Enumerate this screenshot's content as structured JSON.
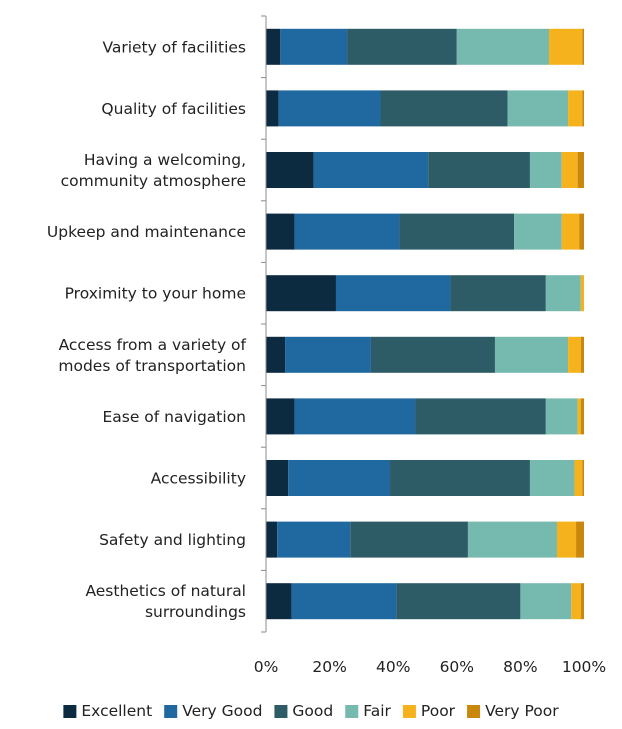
{
  "chart_data": {
    "type": "bar",
    "orientation": "horizontal",
    "stacked": "percent",
    "categories": [
      [
        "Variety of facilities"
      ],
      [
        "Quality of facilities"
      ],
      [
        "Having a welcoming,",
        "community atmosphere"
      ],
      [
        "Upkeep and maintenance"
      ],
      [
        "Proximity to your home"
      ],
      [
        "Access from a variety of",
        "modes of transportation"
      ],
      [
        "Ease of navigation"
      ],
      [
        "Accessibility"
      ],
      [
        "Safety and lighting"
      ],
      [
        "Aesthetics of natural",
        "surroundings"
      ]
    ],
    "series": [
      {
        "name": "Excellent",
        "color": "#0c2a40",
        "values": [
          4.5,
          4,
          15,
          9,
          22,
          6,
          9,
          7,
          3.5,
          8
        ]
      },
      {
        "name": "Very Good",
        "color": "#2068a0",
        "values": [
          21,
          32,
          36,
          33,
          36,
          27,
          38,
          32,
          23,
          33
        ]
      },
      {
        "name": "Good",
        "color": "#2e5c66",
        "values": [
          34.5,
          40,
          32,
          36,
          30,
          39,
          41,
          44,
          37,
          39
        ]
      },
      {
        "name": "Fair",
        "color": "#76b9ae",
        "values": [
          29,
          19,
          10,
          15,
          11,
          23,
          10,
          14,
          28,
          16
        ]
      },
      {
        "name": "Poor",
        "color": "#f5b21c",
        "values": [
          10.5,
          4.5,
          5,
          5.5,
          1,
          4,
          1,
          2.5,
          6,
          3
        ]
      },
      {
        "name": "Very Poor",
        "color": "#c9880c",
        "values": [
          0.5,
          0.5,
          2,
          1.5,
          0,
          1,
          1,
          0.5,
          2.5,
          1
        ]
      }
    ],
    "x_ticks": [
      "0%",
      "20%",
      "40%",
      "60%",
      "80%",
      "100%"
    ],
    "xlim": [
      0,
      100
    ],
    "grid": false,
    "legend_position": "bottom"
  }
}
